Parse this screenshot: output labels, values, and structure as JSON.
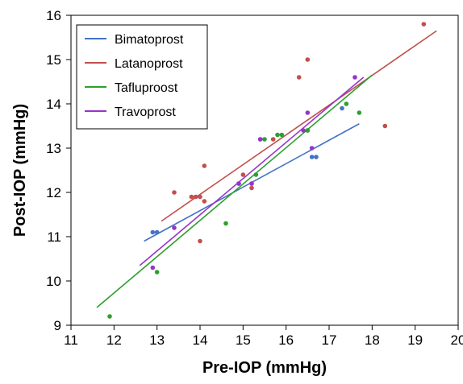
{
  "chart_data": {
    "type": "scatter",
    "title": "",
    "xlabel": "Pre-IOP (mmHg)",
    "ylabel": "Post-IOP (mmHg)",
    "xlim": [
      11,
      20
    ],
    "ylim": [
      9,
      16
    ],
    "xticks": [
      11,
      12,
      13,
      14,
      15,
      16,
      17,
      18,
      19,
      20
    ],
    "yticks": [
      9,
      10,
      11,
      12,
      13,
      14,
      15,
      16
    ],
    "grid": false,
    "legend_position": "top-left",
    "series": [
      {
        "name": "Bimatoprost",
        "color": "#4472C4",
        "points": [
          [
            12.9,
            11.1
          ],
          [
            13.0,
            11.1
          ],
          [
            14.9,
            12.2
          ],
          [
            15.4,
            13.2
          ],
          [
            16.5,
            13.4
          ],
          [
            16.6,
            12.8
          ],
          [
            16.7,
            12.8
          ],
          [
            17.3,
            13.9
          ]
        ],
        "trendline": [
          [
            12.7,
            10.9
          ],
          [
            17.7,
            13.55
          ]
        ]
      },
      {
        "name": "Latanoprost",
        "color": "#C0504D",
        "points": [
          [
            13.4,
            12.0
          ],
          [
            13.8,
            11.9
          ],
          [
            13.9,
            11.9
          ],
          [
            14.0,
            11.9
          ],
          [
            14.0,
            10.9
          ],
          [
            14.1,
            11.8
          ],
          [
            14.1,
            12.6
          ],
          [
            15.0,
            12.4
          ],
          [
            15.2,
            12.1
          ],
          [
            15.2,
            12.2
          ],
          [
            15.7,
            13.2
          ],
          [
            16.3,
            14.6
          ],
          [
            16.5,
            15.0
          ],
          [
            18.3,
            13.5
          ],
          [
            19.2,
            15.8
          ]
        ],
        "trendline": [
          [
            13.1,
            11.35
          ],
          [
            19.5,
            15.65
          ]
        ]
      },
      {
        "name": "Tafluproost",
        "color": "#2CA02C",
        "points": [
          [
            11.9,
            9.2
          ],
          [
            13.0,
            10.2
          ],
          [
            14.6,
            11.3
          ],
          [
            15.3,
            12.4
          ],
          [
            15.5,
            13.2
          ],
          [
            15.8,
            13.3
          ],
          [
            15.9,
            13.3
          ],
          [
            16.5,
            13.4
          ],
          [
            17.4,
            14.0
          ],
          [
            17.7,
            13.8
          ]
        ],
        "trendline": [
          [
            11.6,
            9.4
          ],
          [
            18.0,
            14.65
          ]
        ]
      },
      {
        "name": "Travoprost",
        "color": "#9933CC",
        "points": [
          [
            12.9,
            10.3
          ],
          [
            13.4,
            11.2
          ],
          [
            14.9,
            12.2
          ],
          [
            15.2,
            12.2
          ],
          [
            15.4,
            13.2
          ],
          [
            16.4,
            13.4
          ],
          [
            16.5,
            13.8
          ],
          [
            16.6,
            13.0
          ],
          [
            17.6,
            14.6
          ]
        ],
        "trendline": [
          [
            12.6,
            10.35
          ],
          [
            17.8,
            14.6
          ]
        ]
      }
    ]
  }
}
